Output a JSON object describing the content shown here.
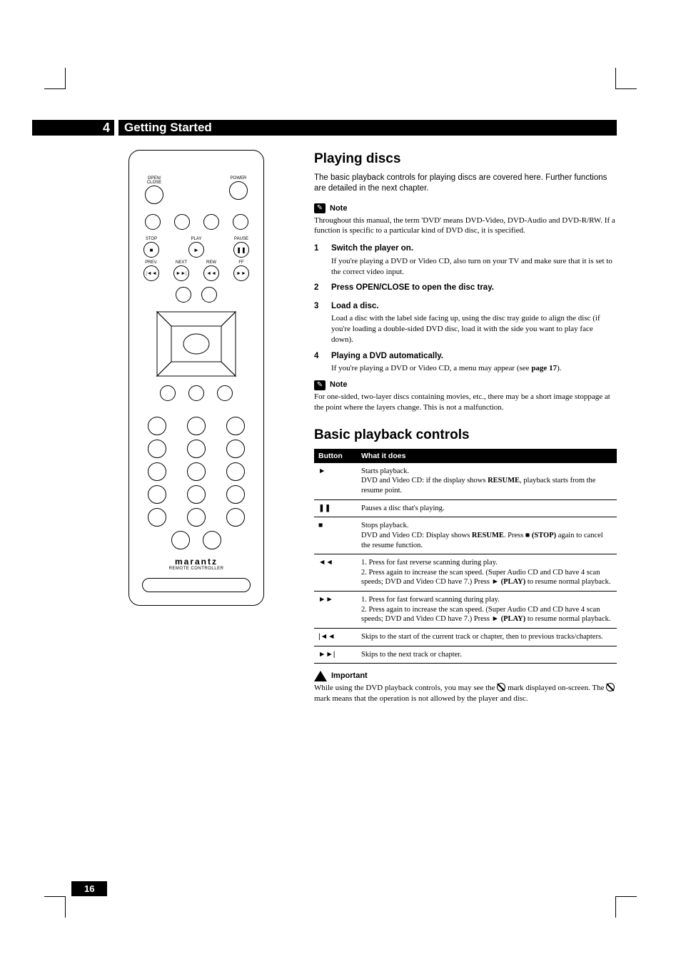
{
  "header": {
    "chapter_number": "4",
    "chapter_title": "Getting Started"
  },
  "remote": {
    "open_close_label": "OPEN/\nCLOSE",
    "power_label": "POWER",
    "stop_label": "STOP",
    "play_label": "PLAY",
    "pause_label": "PAUSE",
    "prev_label": "PREV.",
    "next_label": "NEXT",
    "rew_label": "REW",
    "ff_label": "FF",
    "brand": "marantz",
    "brand_sub": "REMOTE CONTROLLER"
  },
  "section1": {
    "title": "Playing discs",
    "intro": "The basic playback controls for playing discs are covered here. Further functions are detailed in the next chapter.",
    "note_label": "Note",
    "note1_text": "Throughout this manual, the term 'DVD' means DVD-Video, DVD-Audio and DVD-R/RW. If a function is specific to a particular kind of DVD disc, it is specified.",
    "steps": [
      {
        "n": "1",
        "title": "Switch the player on.",
        "text": "If you're playing a DVD or Video CD, also turn on your TV and make sure that it is set to the correct video input."
      },
      {
        "n": "2",
        "title": "Press OPEN/CLOSE to open the disc tray.",
        "text": ""
      },
      {
        "n": "3",
        "title": "Load a disc.",
        "text": "Load a disc with the label side facing up, using the disc tray guide to align the disc (if you're loading a double-sided DVD disc, load it with the side you want to play face down)."
      },
      {
        "n": "4",
        "title": "Playing a DVD automatically.",
        "text_pre": "If you're playing a DVD or Video CD, a menu may appear (see ",
        "text_bold": "page 17",
        "text_post": ")."
      }
    ],
    "note2_text": "For one-sided, two-layer discs containing movies, etc., there may be a short image stoppage at the point where the layers change.  This is not a malfunction."
  },
  "section2": {
    "title": "Basic playback controls",
    "table": {
      "col1": "Button",
      "col2": "What it does",
      "rows": [
        {
          "sym": "►",
          "desc_pre": "Starts playback.\nDVD and Video CD: if the display shows ",
          "desc_b1": "RESUME",
          "desc_post": ", playback starts from the resume point."
        },
        {
          "sym": "❚❚",
          "desc": "Pauses a disc that's playing."
        },
        {
          "sym": "■",
          "desc_pre": "Stops playback.\nDVD and Video CD: Display shows ",
          "desc_b1": "RESUME",
          "desc_mid": ". Press ■ ",
          "desc_b2": "(STOP)",
          "desc_post": " again to cancel the resume function."
        },
        {
          "sym": "◄◄",
          "desc_pre": "1. Press for fast reverse scanning during play.\n2. Press again to increase the scan speed. (Super Audio CD and CD have 4 scan speeds; DVD and Video CD have 7.) Press ► ",
          "desc_b1": "(PLAY)",
          "desc_post": " to resume normal playback."
        },
        {
          "sym": "►►",
          "desc_pre": "1. Press for fast forward scanning during play.\n2. Press again to increase the scan speed. (Super Audio CD and CD have 4 scan speeds; DVD and Video CD have 7.) Press ► ",
          "desc_b1": "(PLAY)",
          "desc_post": " to resume normal playback."
        },
        {
          "sym": "|◄◄",
          "desc": "Skips to the start of the current track or chapter, then to previous tracks/chapters."
        },
        {
          "sym": "►►|",
          "desc": "Skips to the next track or chapter."
        }
      ]
    },
    "important_label": "Important",
    "important_text_pre": "While using the DVD playback controls, you may see the ",
    "important_text_mid": " mark displayed on-screen. The ",
    "important_text_post": " mark means that the operation is not allowed by the player and disc."
  },
  "page_number": "16",
  "style": {
    "page_bg": "#ffffff",
    "ink": "#000000",
    "heading_font": "Arial, sans-serif",
    "body_font": "Georgia, serif",
    "h2_size_pt": 19,
    "body_size_pt": 11
  }
}
